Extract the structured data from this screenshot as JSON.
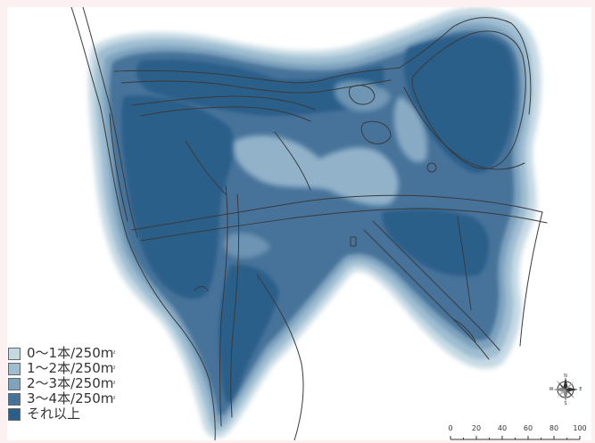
{
  "map": {
    "colors": {
      "page_bg": "#fdf0f1",
      "class_0_1": "#c5d9e3",
      "class_1_2": "#9fbdd1",
      "class_2_3": "#7fa3be",
      "class_3_4": "#46739a",
      "class_4_plus": "#2b5e8a",
      "path_stroke": "#3a3a3a"
    }
  },
  "legend": {
    "items": [
      {
        "label": "0〜1本/250m",
        "sup": "²",
        "color": "#c5d9e3"
      },
      {
        "label": "1〜2本/250m",
        "sup": "²",
        "color": "#9fbdd1"
      },
      {
        "label": "2〜3本/250m",
        "sup": "²",
        "color": "#7fa3be"
      },
      {
        "label": "3〜4本/250m",
        "sup": "²",
        "color": "#46739a"
      },
      {
        "label": "それ以上",
        "sup": "",
        "color": "#2b5e8a"
      }
    ]
  },
  "scale_bar": {
    "ticks": [
      "0",
      "20",
      "40",
      "60",
      "80",
      "100"
    ]
  },
  "compass": {
    "labels": [
      "N",
      "E",
      "S",
      "W"
    ],
    "icon": "compass-rose-icon"
  }
}
